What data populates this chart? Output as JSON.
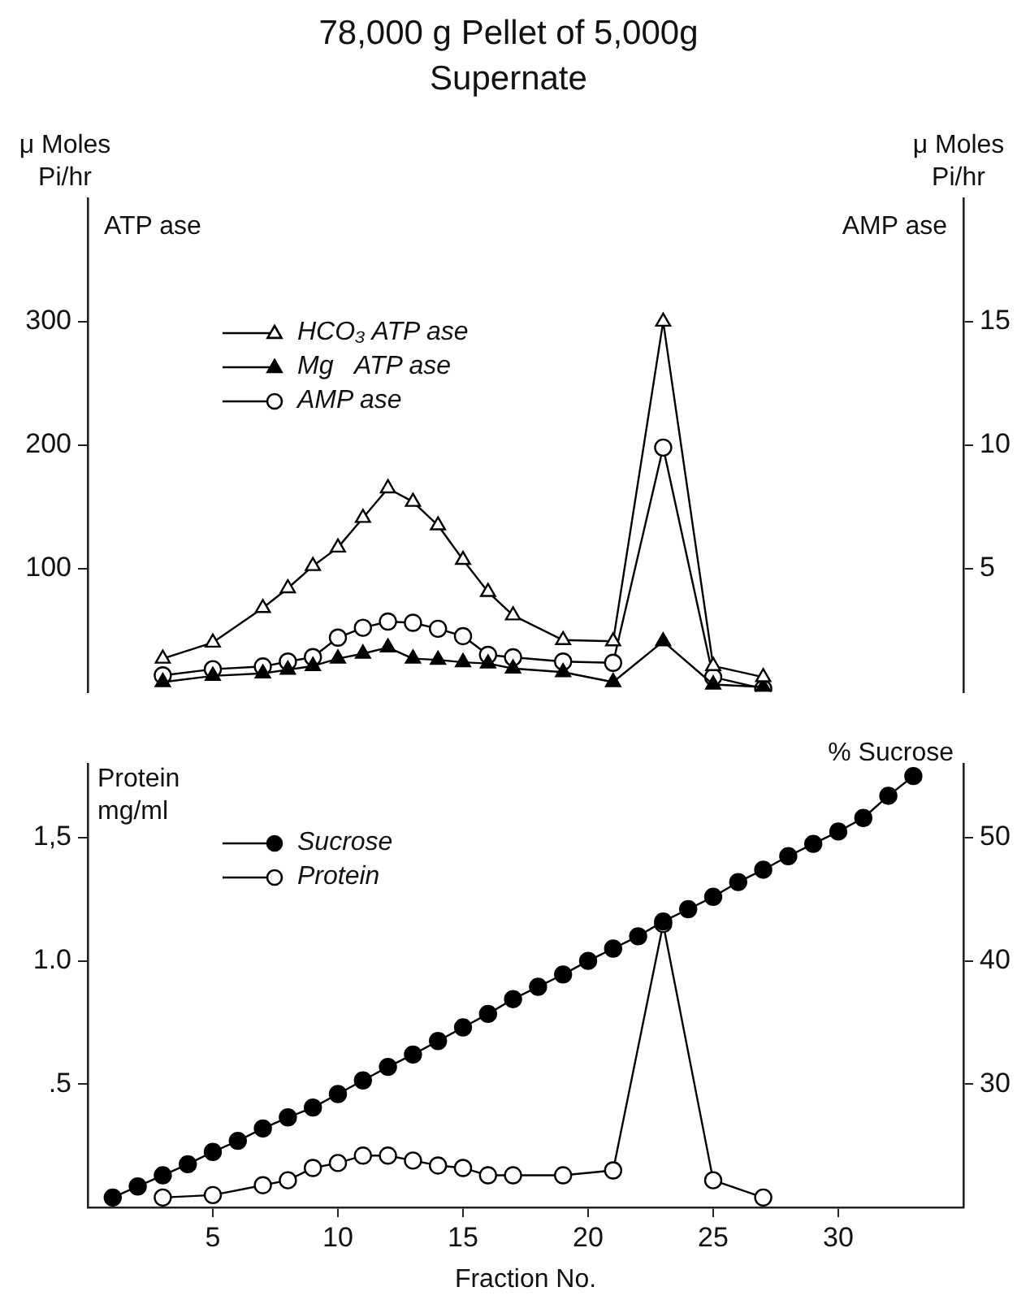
{
  "chart_data": [
    {
      "type": "line",
      "title": "78,000 g Pellet of 5,000g Supernate",
      "ylabel": "μ Moles\nPi/hr",
      "y2label": "μ Moles\nPi/hr",
      "annotations": [
        "ATP ase",
        "AMP ase"
      ],
      "x": [
        3,
        5,
        7,
        8,
        9,
        10,
        11,
        12,
        13,
        14,
        15,
        16,
        17,
        19,
        21,
        23,
        25,
        27
      ],
      "series": [
        {
          "name": "HCO₃ ATP ase",
          "color": "#000000",
          "marker": "triangle",
          "colors": [
            "#ffffff",
            "#ffffff",
            "#ffffff",
            "#ffffff",
            "#ffffff",
            "#ffffff",
            "#ffffff",
            "#ffffff",
            "#ffffff",
            "#ffffff",
            "#ffffff",
            "#ffffff",
            "#ffffff",
            "#ffffff",
            "#ffffff",
            "#ffffff",
            "#ffffff",
            "#ffffff"
          ],
          "values": [
            27,
            40,
            68,
            84,
            102,
            117,
            141,
            165,
            154,
            135,
            107,
            81,
            62,
            42,
            41,
            300,
            21,
            12
          ]
        },
        {
          "name": "Mg   ATP ase",
          "color": "#000000",
          "marker": "triangle",
          "values": [
            8,
            13,
            15,
            18,
            21,
            27,
            31,
            36,
            27,
            26,
            24,
            23,
            19,
            16,
            8,
            41,
            6,
            4
          ]
        },
        {
          "name": "AMP ase",
          "color": "#000000",
          "marker": "circle",
          "axis": "y2",
          "colors": [
            "#ffffff",
            "#ffffff",
            "#ffffff",
            "#ffffff",
            "#ffffff",
            "#ffffff",
            "#ffffff",
            "#ffffff",
            "#ffffff",
            "#ffffff",
            "#ffffff",
            "#ffffff",
            "#ffffff",
            "#ffffff",
            "#ffffff",
            "#ffffff",
            "#ffffff",
            "#ffffff"
          ],
          "values": [
            0.67,
            0.92,
            1.03,
            1.23,
            1.41,
            2.2,
            2.6,
            2.85,
            2.8,
            2.56,
            2.26,
            1.5,
            1.4,
            1.23,
            1.18,
            9.9,
            0.6,
            0.13
          ]
        }
      ],
      "xlim": [
        0,
        35
      ],
      "ylim": [
        0,
        400
      ],
      "yticks": [
        100,
        200,
        300
      ],
      "y2lim": [
        0,
        20
      ],
      "y2ticks": [
        5,
        10,
        15
      ],
      "tick_labels": "y",
      "grid": false,
      "legend": "top left",
      "line_style": "solid"
    },
    {
      "type": "line",
      "xlabel": "Fraction No.",
      "ylabel": "Protein\nmg/ml",
      "y2label": "% Sucrose",
      "series": [
        {
          "name": "Sucrose",
          "color": "#000000",
          "marker": "circle",
          "axis": "y2",
          "x": [
            1,
            2,
            3,
            4,
            5,
            6,
            7,
            8,
            9,
            10,
            11,
            12,
            13,
            14,
            15,
            16,
            17,
            18,
            19,
            20,
            21,
            22,
            23,
            24,
            25,
            26,
            27,
            28,
            29,
            30,
            31,
            32,
            33
          ],
          "values": [
            20.8,
            21.7,
            22.6,
            23.5,
            24.5,
            25.4,
            26.4,
            27.3,
            28.1,
            29.2,
            30.3,
            31.4,
            32.4,
            33.5,
            34.6,
            35.7,
            36.9,
            37.9,
            38.9,
            40.0,
            41.0,
            42.0,
            43.2,
            44.2,
            45.2,
            46.4,
            47.4,
            48.5,
            49.5,
            50.5,
            51.6,
            53.4,
            55.0
          ]
        },
        {
          "name": "Protein",
          "color": "#000000",
          "marker": "circle",
          "colors": [
            "#ffffff",
            "#ffffff",
            "#ffffff",
            "#ffffff",
            "#ffffff",
            "#ffffff",
            "#ffffff",
            "#ffffff",
            "#ffffff",
            "#ffffff",
            "#ffffff",
            "#ffffff",
            "#ffffff",
            "#ffffff",
            "#ffffff",
            "#ffffff",
            "#ffffff",
            "#ffffff"
          ],
          "x": [
            3,
            5,
            7,
            8,
            9,
            10,
            11,
            12,
            13,
            14,
            15,
            16,
            17,
            19,
            21,
            23,
            25,
            27
          ],
          "values": [
            0.04,
            0.05,
            0.09,
            0.11,
            0.16,
            0.18,
            0.21,
            0.21,
            0.19,
            0.17,
            0.16,
            0.13,
            0.13,
            0.13,
            0.15,
            1.15,
            0.11,
            0.04
          ]
        }
      ],
      "xlim": [
        0,
        35
      ],
      "xticks": [
        5,
        10,
        15,
        20,
        25,
        30
      ],
      "ylim": [
        0,
        1.8
      ],
      "yticks": [
        {
          "value": 0.5,
          "label": ".5"
        },
        {
          "value": 1,
          "label": "1.0"
        },
        {
          "value": 1.5,
          "label": "1,5"
        }
      ],
      "y2lim": [
        20,
        56
      ],
      "y2ticks": [
        30,
        40,
        50
      ],
      "grid": false,
      "legend": "top left",
      "line_style": "solid"
    }
  ]
}
